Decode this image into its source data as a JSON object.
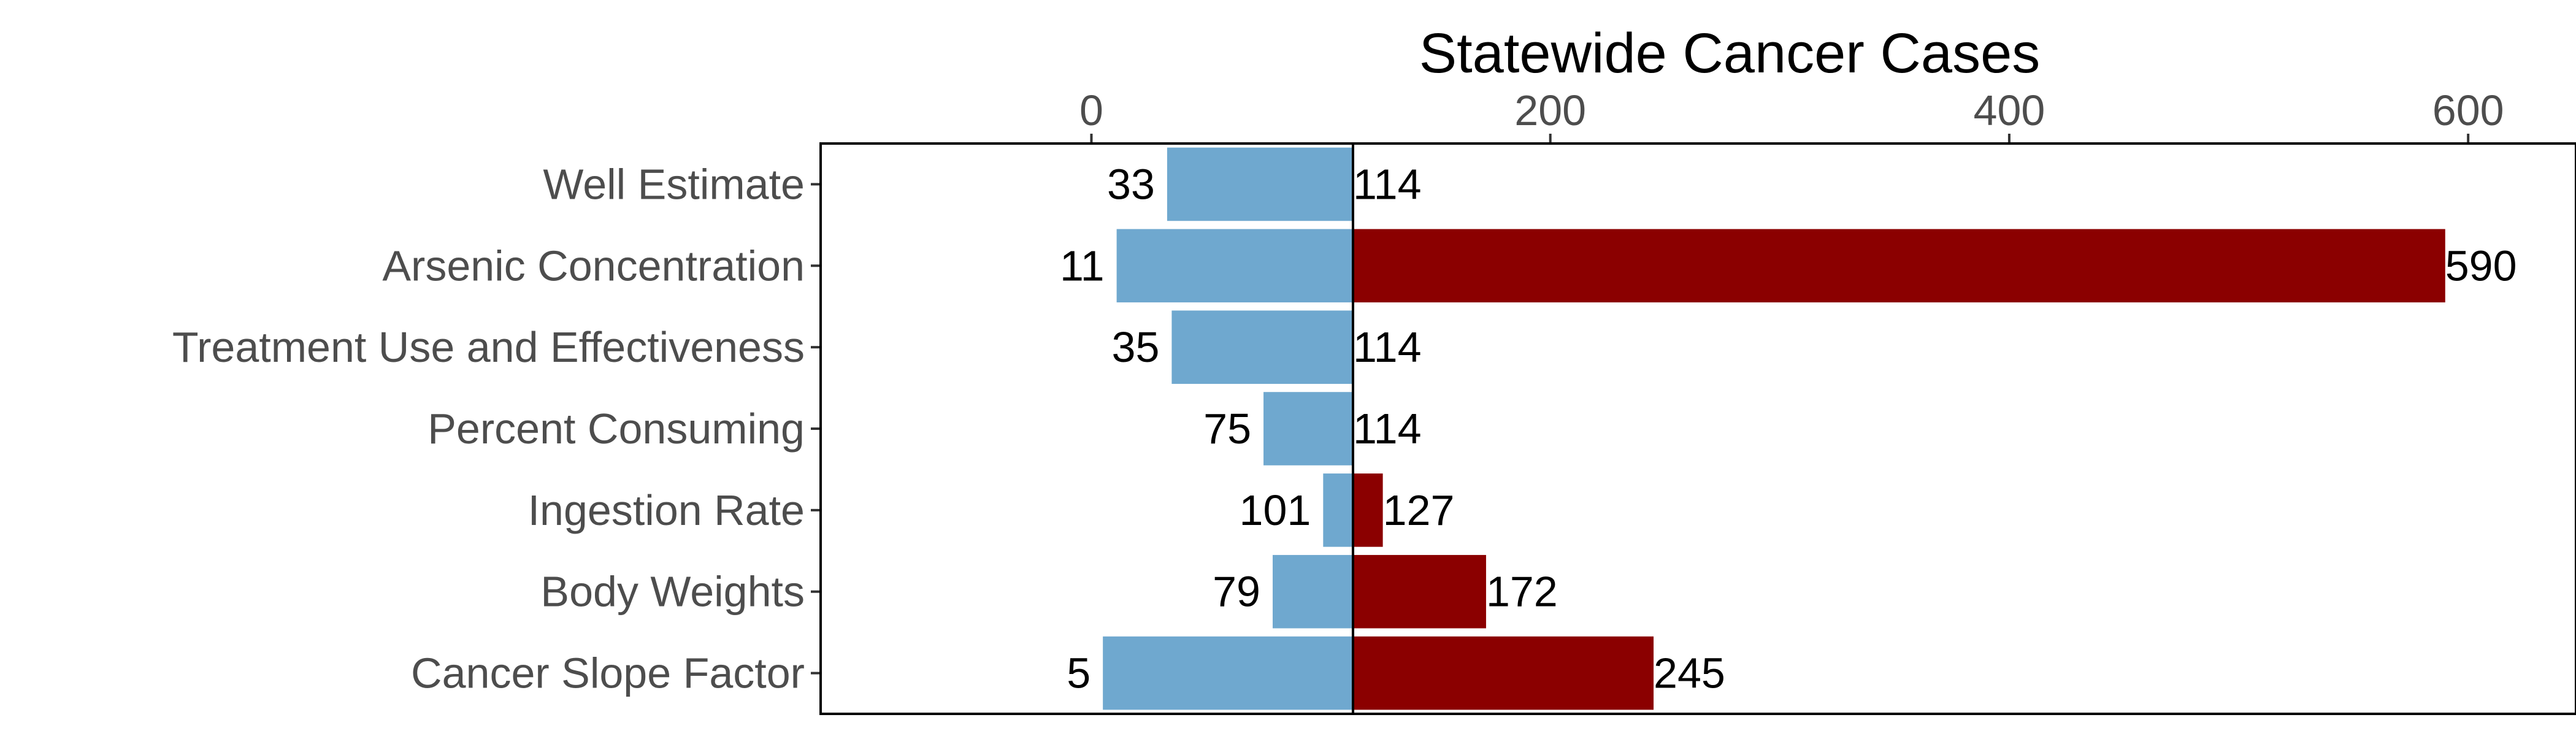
{
  "chart_data": {
    "type": "bar",
    "orientation": "horizontal",
    "chart_style": "tornado",
    "title": "Statewide Cancer Cases",
    "xlabel": "",
    "ylabel": "",
    "x_axis_position": "top",
    "xlim": [
      -118,
      647
    ],
    "xticks": [
      0,
      200,
      400,
      600
    ],
    "baseline": 114,
    "grid": false,
    "legend": "none",
    "categories": [
      "Well Estimate",
      "Arsenic Concentration",
      "Treatment Use and Effectiveness",
      "Percent Consuming",
      "Ingestion Rate",
      "Body Weights",
      "Cancer Slope Factor"
    ],
    "low_values": [
      33,
      11,
      35,
      75,
      101,
      79,
      5
    ],
    "high_values": [
      114,
      590,
      114,
      114,
      127,
      172,
      245
    ],
    "low_color": "#6fa8cf",
    "high_color": "#8b0000"
  }
}
